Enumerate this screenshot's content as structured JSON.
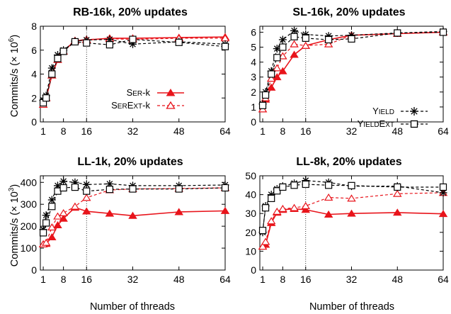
{
  "x_label": "Number of threads",
  "y_label_top": {
    "main": "Commits/s (",
    "times": "× 10",
    "exp": "6",
    "close": ")"
  },
  "y_label_bottom": {
    "main": "Commits/s (",
    "times": "× 10",
    "exp": "3",
    "close": ")"
  },
  "colors": {
    "ser": "#e8141b",
    "yield": "#000000"
  },
  "legend": {
    "ser_k": {
      "cap1": "S",
      "small1": "ER",
      "tail": "-k"
    },
    "serext_k": {
      "cap1": "S",
      "small1": "ER",
      "cap2": "E",
      "small2": "XT",
      "tail": "-k"
    },
    "yield": {
      "cap1": "Y",
      "small1": "IELD"
    },
    "yieldext": {
      "cap1": "Y",
      "small1": "IELD",
      "cap2": "E",
      "small2": "XT"
    }
  },
  "chart_data": [
    {
      "type": "line",
      "title": "RB-16k, 20% updates",
      "xlabel": "",
      "ylabel": "Commits/s (× 10^6)",
      "xlim": [
        0,
        64
      ],
      "ylim": [
        0,
        8
      ],
      "xticks": [
        1,
        8,
        16,
        32,
        48,
        64
      ],
      "yticks": [
        0,
        2,
        4,
        6,
        8
      ],
      "vline": 16,
      "legend_position": "bottom-right",
      "series": [
        {
          "name": "SER-k",
          "style": "solid",
          "marker": "triangle-filled",
          "color": "#e8141b",
          "x": [
            1,
            2,
            4,
            6,
            8,
            12,
            16,
            24,
            32,
            48,
            64
          ],
          "y": [
            1.45,
            2.0,
            3.9,
            5.2,
            5.9,
            6.8,
            6.85,
            7.0,
            7.0,
            7.05,
            7.1
          ]
        },
        {
          "name": "SEREXT-k",
          "style": "dashed",
          "marker": "triangle-open",
          "color": "#e8141b",
          "x": [
            1,
            2,
            4,
            6,
            8,
            12,
            16,
            24,
            32,
            48,
            64
          ],
          "y": [
            1.45,
            2.0,
            3.9,
            5.2,
            5.9,
            6.8,
            6.9,
            6.95,
            6.9,
            7.0,
            7.0
          ]
        },
        {
          "name": "YIELD",
          "style": "dashed",
          "marker": "asterisk",
          "color": "#000000",
          "x": [
            1,
            2,
            4,
            6,
            8,
            12,
            16,
            24,
            32,
            48,
            64
          ],
          "y": [
            1.8,
            2.2,
            4.5,
            5.6,
            6.0,
            6.75,
            6.85,
            6.9,
            6.5,
            6.7,
            6.5
          ]
        },
        {
          "name": "YIELDEXT",
          "style": "dashed",
          "marker": "square-open",
          "color": "#000000",
          "x": [
            1,
            2,
            4,
            6,
            8,
            12,
            16,
            24,
            32,
            48,
            64
          ],
          "y": [
            1.6,
            2.0,
            4.0,
            5.3,
            5.9,
            6.7,
            6.6,
            6.45,
            6.9,
            6.65,
            6.3
          ]
        }
      ]
    },
    {
      "type": "line",
      "title": "SL-16k, 20% updates",
      "xlabel": "",
      "ylabel": "",
      "xlim": [
        0,
        64
      ],
      "ylim": [
        0,
        6.4
      ],
      "xticks": [
        1,
        8,
        16,
        32,
        48,
        64
      ],
      "yticks": [
        0,
        1,
        2,
        3,
        4,
        5,
        6
      ],
      "vline": 16,
      "legend_position": "bottom-right",
      "series": [
        {
          "name": "SER-k",
          "style": "solid",
          "marker": "triangle-filled",
          "color": "#e8141b",
          "x": [
            1,
            2,
            4,
            6,
            8,
            12,
            16,
            24,
            32,
            48,
            64
          ],
          "y": [
            0.85,
            1.5,
            2.3,
            3.0,
            3.4,
            4.5,
            5.1,
            5.5,
            5.8,
            5.9,
            6.0
          ]
        },
        {
          "name": "SEREXT-k",
          "style": "dashed",
          "marker": "triangle-open",
          "color": "#e8141b",
          "x": [
            1,
            2,
            4,
            6,
            8,
            12,
            16,
            24,
            32,
            48,
            64
          ],
          "y": [
            0.85,
            1.6,
            2.9,
            3.6,
            4.4,
            5.2,
            5.1,
            5.2,
            5.8,
            5.9,
            6.0
          ]
        },
        {
          "name": "YIELD",
          "style": "dashed",
          "marker": "asterisk",
          "color": "#000000",
          "x": [
            1,
            2,
            4,
            6,
            8,
            12,
            16,
            24,
            32,
            48,
            64
          ],
          "y": [
            1.2,
            2.0,
            3.4,
            4.9,
            5.5,
            6.1,
            5.85,
            5.75,
            5.8,
            5.95,
            6.05
          ]
        },
        {
          "name": "YIELDEXT",
          "style": "dashed",
          "marker": "square-open",
          "color": "#000000",
          "x": [
            1,
            2,
            4,
            6,
            8,
            12,
            16,
            24,
            32,
            48,
            64
          ],
          "y": [
            1.1,
            1.8,
            3.2,
            4.3,
            5.0,
            5.7,
            5.6,
            5.5,
            5.55,
            5.95,
            6.0
          ]
        }
      ]
    },
    {
      "type": "line",
      "title": "LL-1k, 20% updates",
      "xlabel": "Number of threads",
      "ylabel": "Commits/s (× 10^3)",
      "xlim": [
        0,
        64
      ],
      "ylim": [
        0,
        430
      ],
      "xticks": [
        1,
        8,
        16,
        32,
        48,
        64
      ],
      "yticks": [
        0,
        100,
        200,
        300,
        400
      ],
      "vline": 16,
      "series": [
        {
          "name": "SER-k",
          "style": "solid",
          "marker": "triangle-filled",
          "color": "#e8141b",
          "x": [
            1,
            2,
            4,
            6,
            8,
            12,
            16,
            24,
            32,
            48,
            64
          ],
          "y": [
            118,
            120,
            150,
            205,
            235,
            285,
            268,
            258,
            248,
            265,
            270
          ]
        },
        {
          "name": "SEREXT-k",
          "style": "dashed",
          "marker": "triangle-open",
          "color": "#e8141b",
          "x": [
            1,
            2,
            4,
            6,
            8,
            12,
            16,
            24,
            32,
            48,
            64
          ],
          "y": [
            118,
            125,
            195,
            245,
            260,
            290,
            330,
            365,
            370,
            372,
            375
          ]
        },
        {
          "name": "YIELD",
          "style": "dashed",
          "marker": "asterisk",
          "color": "#000000",
          "x": [
            1,
            2,
            4,
            6,
            8,
            12,
            16,
            24,
            32,
            48,
            64
          ],
          "y": [
            185,
            250,
            320,
            385,
            405,
            400,
            390,
            393,
            385,
            385,
            388
          ]
        },
        {
          "name": "YIELDEXT",
          "style": "dashed",
          "marker": "square-open",
          "color": "#000000",
          "x": [
            1,
            2,
            4,
            6,
            8,
            12,
            16,
            24,
            32,
            48,
            64
          ],
          "y": [
            170,
            215,
            290,
            360,
            375,
            378,
            360,
            368,
            370,
            370,
            375
          ]
        }
      ]
    },
    {
      "type": "line",
      "title": "LL-8k, 20% updates",
      "xlabel": "Number of threads",
      "ylabel": "",
      "xlim": [
        0,
        64
      ],
      "ylim": [
        0,
        50
      ],
      "xticks": [
        1,
        8,
        16,
        32,
        48,
        64
      ],
      "yticks": [
        0,
        10,
        20,
        30,
        40,
        50
      ],
      "vline": 16,
      "series": [
        {
          "name": "SER-k",
          "style": "solid",
          "marker": "triangle-filled",
          "color": "#e8141b",
          "x": [
            1,
            2,
            4,
            6,
            8,
            12,
            16,
            24,
            32,
            48,
            64
          ],
          "y": [
            12.5,
            13.5,
            25,
            30.5,
            32,
            32.5,
            32,
            29.5,
            30,
            30.5,
            29.8
          ]
        },
        {
          "name": "SEREXT-k",
          "style": "dashed",
          "marker": "triangle-open",
          "color": "#e8141b",
          "x": [
            1,
            2,
            4,
            6,
            8,
            12,
            16,
            24,
            32,
            48,
            64
          ],
          "y": [
            12.5,
            15,
            26,
            31,
            32.5,
            33,
            34,
            38.5,
            38,
            40.5,
            41
          ]
        },
        {
          "name": "YIELD",
          "style": "dashed",
          "marker": "asterisk",
          "color": "#000000",
          "x": [
            1,
            2,
            4,
            6,
            8,
            12,
            16,
            24,
            32,
            48,
            64
          ],
          "y": [
            20,
            34,
            40,
            43,
            44.5,
            46,
            47.5,
            46.5,
            44.5,
            44.5,
            41
          ]
        },
        {
          "name": "YIELDEXT",
          "style": "dashed",
          "marker": "square-open",
          "color": "#000000",
          "x": [
            1,
            2,
            4,
            6,
            8,
            12,
            16,
            24,
            32,
            48,
            64
          ],
          "y": [
            21,
            33,
            38,
            42,
            44,
            45,
            45.5,
            45,
            44.8,
            44,
            44
          ]
        }
      ]
    }
  ]
}
